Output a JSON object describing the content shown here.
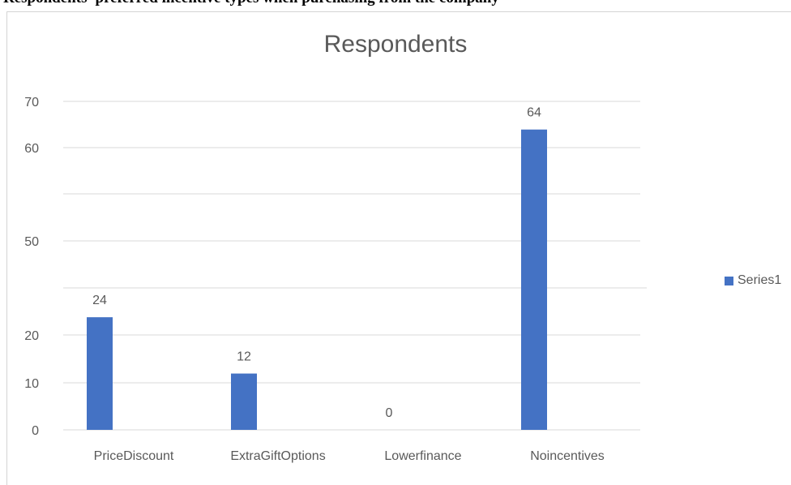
{
  "header_strip": {
    "text": "Respondents' preferred incentive types when purchasing from the company"
  },
  "chart_data": {
    "type": "bar",
    "title": "Respondents",
    "categories": [
      "PriceDiscount",
      "ExtraGiftOptions",
      "Lowerfinance",
      "Noincentives"
    ],
    "series": [
      {
        "name": "Series1",
        "values": [
          24,
          12,
          0,
          64
        ],
        "color": "#4472c4"
      }
    ],
    "data_labels": [
      "24",
      "12",
      "0",
      "64"
    ],
    "ytick_labels": [
      "0",
      "10",
      "20",
      "",
      "50",
      "",
      "60",
      "70"
    ],
    "ylim": [
      0,
      70
    ],
    "xlabel": "",
    "ylabel": "",
    "grid": true,
    "legend_position": "right",
    "colors": {
      "bar": "#4472c4",
      "grid": "#d9d9d9",
      "text": "#595959"
    }
  }
}
